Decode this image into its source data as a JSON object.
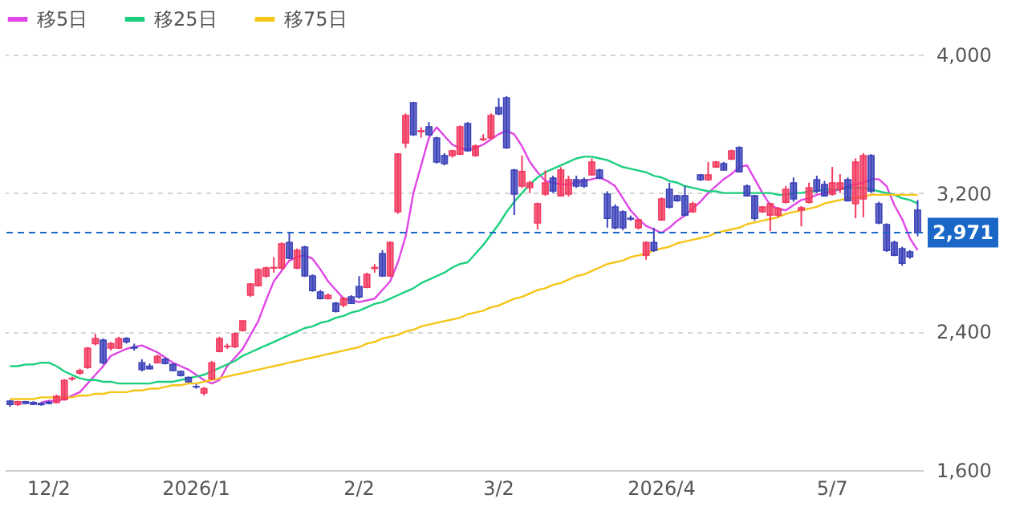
{
  "chart_data": {
    "type": "candlestick",
    "categories": [
      null,
      null,
      null,
      null,
      null,
      "12/2",
      null,
      null,
      null,
      null,
      null,
      null,
      null,
      null,
      null,
      null,
      null,
      null,
      null,
      null,
      null,
      null,
      null,
      null,
      "2026/1",
      null,
      null,
      null,
      null,
      null,
      null,
      null,
      null,
      null,
      null,
      null,
      null,
      null,
      null,
      null,
      null,
      null,
      null,
      null,
      null,
      "2/2",
      null,
      null,
      null,
      null,
      null,
      null,
      null,
      null,
      null,
      null,
      null,
      null,
      null,
      null,
      null,
      null,
      null,
      "3/2",
      null,
      null,
      null,
      null,
      null,
      null,
      null,
      null,
      null,
      null,
      null,
      null,
      null,
      null,
      null,
      null,
      null,
      null,
      null,
      null,
      "2026/4",
      null,
      null,
      null,
      null,
      null,
      null,
      null,
      null,
      null,
      null,
      null,
      null,
      null,
      null,
      null,
      null,
      null,
      null,
      null,
      null,
      null,
      "5/7",
      null,
      null,
      null,
      null,
      null,
      null,
      null,
      null,
      null,
      null,
      null
    ],
    "ohlc": [
      [
        1998,
        2005,
        1965,
        1979
      ],
      [
        1979,
        2000,
        1970,
        1995
      ],
      [
        1995,
        2000,
        1980,
        1985
      ],
      [
        1990,
        1998,
        1975,
        1980
      ],
      [
        1985,
        1992,
        1972,
        1978
      ],
      [
        1992,
        2000,
        1980,
        1985
      ],
      [
        1990,
        2035,
        1985,
        2026
      ],
      [
        2007,
        2125,
        2000,
        2118
      ],
      [
        2127,
        2140,
        2115,
        2130
      ],
      [
        2160,
        2185,
        2150,
        2174
      ],
      [
        2192,
        2310,
        2185,
        2304
      ],
      [
        2330,
        2387,
        2320,
        2360
      ],
      [
        2350,
        2360,
        2210,
        2220
      ],
      [
        2304,
        2340,
        2290,
        2331
      ],
      [
        2304,
        2370,
        2300,
        2359
      ],
      [
        2360,
        2368,
        2330,
        2340
      ],
      [
        2310,
        2330,
        2290,
        2305
      ],
      [
        2220,
        2240,
        2170,
        2180
      ],
      [
        2200,
        2215,
        2180,
        2185
      ],
      [
        2220,
        2265,
        2215,
        2257
      ],
      [
        2240,
        2250,
        2210,
        2215
      ],
      [
        2210,
        2215,
        2170,
        2175
      ],
      [
        2170,
        2175,
        2140,
        2146
      ],
      [
        2135,
        2140,
        2105,
        2110
      ],
      [
        2082,
        2095,
        2070,
        2080
      ],
      [
        2045,
        2080,
        2030,
        2070
      ],
      [
        2127,
        2230,
        2120,
        2220
      ],
      [
        2285,
        2370,
        2280,
        2360
      ],
      [
        2313,
        2330,
        2300,
        2315
      ],
      [
        2313,
        2395,
        2305,
        2387
      ],
      [
        2406,
        2465,
        2400,
        2461
      ],
      [
        2610,
        2680,
        2600,
        2675
      ],
      [
        2665,
        2765,
        2660,
        2758
      ],
      [
        2720,
        2775,
        2710,
        2767
      ],
      [
        2767,
        2830,
        2740,
        2770
      ],
      [
        2767,
        2915,
        2760,
        2906
      ],
      [
        2915,
        2970,
        2820,
        2823
      ],
      [
        2767,
        2880,
        2760,
        2869
      ],
      [
        2888,
        2895,
        2715,
        2721
      ],
      [
        2721,
        2730,
        2630,
        2637
      ],
      [
        2628,
        2640,
        2585,
        2591
      ],
      [
        2590,
        2620,
        2585,
        2609
      ],
      [
        2563,
        2570,
        2510,
        2517
      ],
      [
        2554,
        2600,
        2540,
        2591
      ],
      [
        2600,
        2610,
        2560,
        2563
      ],
      [
        2660,
        2720,
        2590,
        2600
      ],
      [
        2656,
        2740,
        2650,
        2730
      ],
      [
        2765,
        2790,
        2740,
        2770
      ],
      [
        2850,
        2870,
        2715,
        2721
      ],
      [
        2721,
        2920,
        2715,
        2915
      ],
      [
        3092,
        3430,
        3080,
        3425
      ],
      [
        3490,
        3660,
        3460,
        3648
      ],
      [
        3722,
        3725,
        3530,
        3537
      ],
      [
        3555,
        3580,
        3520,
        3560
      ],
      [
        3583,
        3610,
        3530,
        3537
      ],
      [
        3518,
        3525,
        3370,
        3379
      ],
      [
        3416,
        3430,
        3360,
        3370
      ],
      [
        3416,
        3450,
        3405,
        3444
      ],
      [
        3425,
        3590,
        3420,
        3583
      ],
      [
        3601,
        3610,
        3440,
        3444
      ],
      [
        3416,
        3480,
        3410,
        3472
      ],
      [
        3509,
        3540,
        3500,
        3512
      ],
      [
        3518,
        3660,
        3510,
        3648
      ],
      [
        3694,
        3750,
        3650,
        3657
      ],
      [
        3750,
        3760,
        3455,
        3462
      ],
      [
        3333,
        3340,
        3073,
        3194
      ],
      [
        3240,
        3416,
        3230,
        3324
      ],
      [
        3231,
        3270,
        3200,
        3258
      ],
      [
        3027,
        3145,
        2990,
        3138
      ],
      [
        3194,
        3330,
        3185,
        3259
      ],
      [
        3286,
        3300,
        3200,
        3212
      ],
      [
        3184,
        3350,
        3180,
        3333
      ],
      [
        3194,
        3300,
        3180,
        3277
      ],
      [
        3277,
        3300,
        3230,
        3240
      ],
      [
        3277,
        3290,
        3230,
        3240
      ],
      [
        3305,
        3400,
        3300,
        3379
      ],
      [
        3333,
        3340,
        3280,
        3286
      ],
      [
        3194,
        3210,
        3000,
        3054
      ],
      [
        3119,
        3135,
        2990,
        2999
      ],
      [
        3092,
        3100,
        2985,
        2999
      ],
      [
        3054,
        3070,
        3040,
        3050
      ],
      [
        2999,
        3050,
        2990,
        3045
      ],
      [
        2841,
        2920,
        2815,
        2915
      ],
      [
        2915,
        3000,
        2860,
        2869
      ],
      [
        3045,
        3175,
        3040,
        3166
      ],
      [
        3221,
        3260,
        3110,
        3119
      ],
      [
        3184,
        3190,
        3150,
        3156
      ],
      [
        3184,
        3240,
        3065,
        3073
      ],
      [
        3092,
        3150,
        3085,
        3138
      ],
      [
        3305,
        3310,
        3270,
        3277
      ],
      [
        3277,
        3380,
        3270,
        3305
      ],
      [
        3351,
        3385,
        3345,
        3379
      ],
      [
        3370,
        3380,
        3330,
        3333
      ],
      [
        3397,
        3450,
        3390,
        3444
      ],
      [
        3462,
        3470,
        3320,
        3323
      ],
      [
        3240,
        3250,
        3180,
        3184
      ],
      [
        3184,
        3190,
        3040,
        3054
      ],
      [
        3092,
        3125,
        3085,
        3119
      ],
      [
        3073,
        3145,
        2980,
        3138
      ],
      [
        3073,
        3120,
        3060,
        3110
      ],
      [
        3147,
        3240,
        3140,
        3221
      ],
      [
        3258,
        3290,
        3150,
        3166
      ],
      [
        3101,
        3125,
        3008,
        3115
      ],
      [
        3147,
        3260,
        3140,
        3231
      ],
      [
        3277,
        3300,
        3200,
        3212
      ],
      [
        3249,
        3270,
        3180,
        3184
      ],
      [
        3194,
        3351,
        3185,
        3258
      ],
      [
        3221,
        3310,
        3200,
        3258
      ],
      [
        3277,
        3290,
        3150,
        3156
      ],
      [
        3138,
        3400,
        3054,
        3379
      ],
      [
        3166,
        3430,
        3060,
        3416
      ],
      [
        3416,
        3425,
        3200,
        3212
      ],
      [
        3138,
        3150,
        3020,
        3027
      ],
      [
        3017,
        3025,
        2860,
        2869
      ],
      [
        2915,
        2925,
        2835,
        2841
      ],
      [
        2878,
        2890,
        2780,
        2795
      ],
      [
        2860,
        2870,
        2820,
        2832
      ],
      [
        3101,
        3160,
        2950,
        2971
      ]
    ],
    "colors": [
      "#3c42b8",
      "#f23a60",
      "#3c42b8",
      "#3c42b8",
      "#3c42b8",
      "#3c42b8",
      "#f23a60",
      "#f23a60",
      "#f23a60",
      "#f23a60",
      "#f23a60",
      "#f23a60",
      "#3c42b8",
      "#f23a60",
      "#f23a60",
      "#3c42b8",
      "#3c42b8",
      "#3c42b8",
      "#3c42b8",
      "#f23a60",
      "#3c42b8",
      "#3c42b8",
      "#3c42b8",
      "#3c42b8",
      "#3c42b8",
      "#f23a60",
      "#f23a60",
      "#f23a60",
      "#f23a60",
      "#f23a60",
      "#f23a60",
      "#f23a60",
      "#f23a60",
      "#f23a60",
      "#f23a60",
      "#f23a60",
      "#3c42b8",
      "#f23a60",
      "#3c42b8",
      "#3c42b8",
      "#3c42b8",
      "#f23a60",
      "#3c42b8",
      "#f23a60",
      "#3c42b8",
      "#3c42b8",
      "#f23a60",
      "#f23a60",
      "#3c42b8",
      "#f23a60",
      "#f23a60",
      "#f23a60",
      "#3c42b8",
      "#f23a60",
      "#3c42b8",
      "#3c42b8",
      "#3c42b8",
      "#f23a60",
      "#f23a60",
      "#3c42b8",
      "#f23a60",
      "#f23a60",
      "#f23a60",
      "#3c42b8",
      "#3c42b8",
      "#3c42b8",
      "#f23a60",
      "#f23a60",
      "#f23a60",
      "#f23a60",
      "#3c42b8",
      "#f23a60",
      "#f23a60",
      "#3c42b8",
      "#3c42b8",
      "#f23a60",
      "#3c42b8",
      "#3c42b8",
      "#3c42b8",
      "#3c42b8",
      "#3c42b8",
      "#f23a60",
      "#f23a60",
      "#3c42b8",
      "#f23a60",
      "#3c42b8",
      "#3c42b8",
      "#3c42b8",
      "#f23a60",
      "#3c42b8",
      "#f23a60",
      "#f23a60",
      "#3c42b8",
      "#f23a60",
      "#3c42b8",
      "#3c42b8",
      "#3c42b8",
      "#f23a60",
      "#f23a60",
      "#f23a60",
      "#f23a60",
      "#3c42b8",
      "#f23a60",
      "#f23a60",
      "#3c42b8",
      "#3c42b8",
      "#f23a60",
      "#f23a60",
      "#3c42b8",
      "#f23a60",
      "#f23a60",
      "#3c42b8",
      "#3c42b8",
      "#3c42b8",
      "#3c42b8",
      "#3c42b8",
      "#3c42b8",
      "#3c42b8"
    ],
    "series": [
      {
        "type": "line",
        "name": "移5日",
        "color": "#e046e6",
        "values": [
          null,
          null,
          null,
          null,
          1990,
          2000,
          2000,
          2010,
          2030,
          2050,
          2100,
          2150,
          2200,
          2260,
          2280,
          2300,
          2310,
          2320,
          2300,
          2280,
          2250,
          2220,
          2200,
          2180,
          2150,
          2120,
          2100,
          2120,
          2200,
          2250,
          2300,
          2380,
          2460,
          2580,
          2690,
          2750,
          2810,
          2830,
          2840,
          2820,
          2760,
          2690,
          2640,
          2590,
          2580,
          2570,
          2580,
          2590,
          2640,
          2690,
          2800,
          2950,
          3200,
          3360,
          3520,
          3580,
          3530,
          3480,
          3460,
          3450,
          3460,
          3480,
          3510,
          3540,
          3560,
          3540,
          3470,
          3380,
          3320,
          3270,
          3260,
          3250,
          3250,
          3260,
          3270,
          3280,
          3290,
          3270,
          3240,
          3170,
          3100,
          3050,
          3010,
          2990,
          2970,
          3000,
          3040,
          3070,
          3110,
          3150,
          3200,
          3240,
          3280,
          3310,
          3350,
          3360,
          3280,
          3200,
          3130,
          3110,
          3100,
          3130,
          3160,
          3170,
          3190,
          3200,
          3210,
          3220,
          3240,
          3250,
          3260,
          3280,
          3280,
          3240,
          3130,
          3050,
          2940,
          2870
        ]
      },
      {
        "type": "line",
        "name": "移25日",
        "color": "#1ccf7e",
        "values": [
          2200,
          2200,
          2210,
          2210,
          2220,
          2220,
          2200,
          2170,
          2150,
          2130,
          2120,
          2120,
          2110,
          2110,
          2100,
          2100,
          2100,
          2100,
          2100,
          2110,
          2110,
          2110,
          2120,
          2130,
          2140,
          2150,
          2170,
          2190,
          2210,
          2230,
          2260,
          2280,
          2300,
          2320,
          2340,
          2360,
          2380,
          2400,
          2420,
          2430,
          2450,
          2460,
          2480,
          2490,
          2510,
          2520,
          2540,
          2560,
          2570,
          2590,
          2610,
          2630,
          2650,
          2680,
          2700,
          2720,
          2740,
          2770,
          2790,
          2800,
          2850,
          2900,
          2960,
          3020,
          3090,
          3150,
          3200,
          3250,
          3290,
          3320,
          3340,
          3360,
          3380,
          3400,
          3410,
          3410,
          3400,
          3390,
          3370,
          3350,
          3340,
          3330,
          3320,
          3300,
          3290,
          3270,
          3260,
          3240,
          3230,
          3220,
          3210,
          3210,
          3200,
          3200,
          3200,
          3200,
          3200,
          3200,
          3200,
          3190,
          3190,
          3200,
          3200,
          3210,
          3210,
          3220,
          3220,
          3220,
          3230,
          3230,
          3230,
          3220,
          3210,
          3200,
          3190,
          3170,
          3160,
          3140
        ]
      },
      {
        "type": "line",
        "name": "移75日",
        "color": "#f5c518",
        "values": [
          2010,
          2010,
          2010,
          2010,
          2020,
          2020,
          2020,
          2020,
          2020,
          2030,
          2030,
          2040,
          2040,
          2050,
          2050,
          2050,
          2060,
          2060,
          2070,
          2070,
          2080,
          2090,
          2090,
          2100,
          2100,
          2110,
          2120,
          2130,
          2140,
          2150,
          2160,
          2170,
          2180,
          2190,
          2200,
          2210,
          2220,
          2230,
          2240,
          2250,
          2260,
          2270,
          2280,
          2290,
          2300,
          2310,
          2330,
          2340,
          2360,
          2370,
          2380,
          2400,
          2410,
          2430,
          2440,
          2450,
          2460,
          2470,
          2480,
          2500,
          2510,
          2520,
          2540,
          2550,
          2570,
          2590,
          2600,
          2620,
          2640,
          2650,
          2670,
          2680,
          2700,
          2720,
          2730,
          2750,
          2770,
          2790,
          2800,
          2810,
          2830,
          2840,
          2850,
          2870,
          2880,
          2890,
          2910,
          2920,
          2930,
          2940,
          2950,
          2970,
          2980,
          2990,
          3000,
          3020,
          3030,
          3040,
          3050,
          3060,
          3080,
          3090,
          3100,
          3110,
          3120,
          3140,
          3150,
          3160,
          3170,
          3170,
          3180,
          3190,
          3190,
          3190,
          3190,
          3190,
          3190,
          3190
        ]
      }
    ],
    "ylim": [
      1600,
      4000
    ],
    "yticks": [
      {
        "value": 1600,
        "label": "1,600"
      },
      {
        "value": 2400,
        "label": "2,400"
      },
      {
        "value": 3200,
        "label": "3,200"
      },
      {
        "value": 4000,
        "label": "4,000"
      }
    ],
    "ref_lines": [
      {
        "axis": "y",
        "value": 2971,
        "label": "2,971",
        "color": "#1a67c8",
        "line_style": "dashed"
      }
    ],
    "grid": "y",
    "legend": "top left",
    "line_style": "solid"
  }
}
